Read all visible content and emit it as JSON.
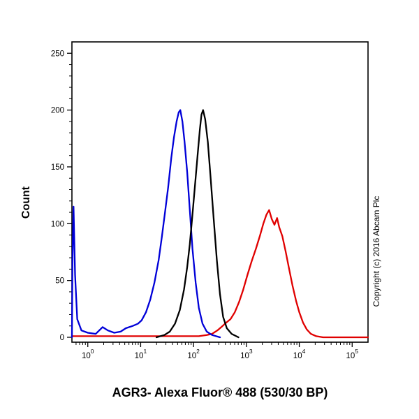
{
  "copyright": "Copyright (c) 2016 Abcam Plc",
  "chart_data": {
    "type": "line",
    "title": "",
    "xlabel": "AGR3- Alexa Fluor® 488 (530/30 BP)",
    "ylabel": "Count",
    "x_scale": "log",
    "x_range_log": [
      -0.3,
      5.3
    ],
    "ylim": [
      0,
      260
    ],
    "y_ticks": [
      0,
      50,
      100,
      150,
      200,
      250
    ],
    "x_major_ticks_exponents": [
      0,
      1,
      2,
      3,
      4,
      5
    ],
    "x_tick_labels": [
      "10^0",
      "10^1",
      "10^2",
      "10^3",
      "10^4",
      "10^5"
    ],
    "grid": false,
    "legend": null,
    "series": [
      {
        "name": "red",
        "color": "#e00000",
        "points": [
          [
            -0.3,
            1
          ],
          [
            0.5,
            1
          ],
          [
            1.5,
            1
          ],
          [
            2.1,
            1
          ],
          [
            2.25,
            2
          ],
          [
            2.35,
            3
          ],
          [
            2.45,
            6
          ],
          [
            2.55,
            10
          ],
          [
            2.62,
            13
          ],
          [
            2.7,
            16
          ],
          [
            2.78,
            22
          ],
          [
            2.86,
            31
          ],
          [
            2.94,
            42
          ],
          [
            3.02,
            55
          ],
          [
            3.1,
            67
          ],
          [
            3.18,
            78
          ],
          [
            3.26,
            90
          ],
          [
            3.32,
            100
          ],
          [
            3.38,
            108
          ],
          [
            3.43,
            112
          ],
          [
            3.48,
            104
          ],
          [
            3.53,
            99
          ],
          [
            3.58,
            105
          ],
          [
            3.62,
            97
          ],
          [
            3.68,
            89
          ],
          [
            3.74,
            76
          ],
          [
            3.8,
            62
          ],
          [
            3.87,
            46
          ],
          [
            3.94,
            32
          ],
          [
            4.0,
            22
          ],
          [
            4.07,
            13
          ],
          [
            4.14,
            7
          ],
          [
            4.22,
            3
          ],
          [
            4.32,
            1
          ],
          [
            4.45,
            0
          ],
          [
            5.3,
            0
          ]
        ]
      },
      {
        "name": "blue",
        "color": "#0000d8",
        "points": [
          [
            -0.3,
            0
          ],
          [
            -0.29,
            70
          ],
          [
            -0.27,
            115
          ],
          [
            -0.24,
            55
          ],
          [
            -0.2,
            16
          ],
          [
            -0.12,
            6
          ],
          [
            0.0,
            4
          ],
          [
            0.15,
            3
          ],
          [
            0.28,
            9
          ],
          [
            0.38,
            6
          ],
          [
            0.5,
            4
          ],
          [
            0.62,
            5
          ],
          [
            0.72,
            8
          ],
          [
            0.85,
            10
          ],
          [
            0.95,
            12
          ],
          [
            1.02,
            15
          ],
          [
            1.1,
            22
          ],
          [
            1.18,
            33
          ],
          [
            1.26,
            48
          ],
          [
            1.34,
            68
          ],
          [
            1.4,
            88
          ],
          [
            1.46,
            110
          ],
          [
            1.52,
            132
          ],
          [
            1.58,
            158
          ],
          [
            1.63,
            176
          ],
          [
            1.68,
            190
          ],
          [
            1.72,
            198
          ],
          [
            1.75,
            200
          ],
          [
            1.79,
            190
          ],
          [
            1.83,
            172
          ],
          [
            1.88,
            145
          ],
          [
            1.93,
            112
          ],
          [
            1.98,
            78
          ],
          [
            2.04,
            48
          ],
          [
            2.1,
            26
          ],
          [
            2.17,
            12
          ],
          [
            2.25,
            5
          ],
          [
            2.35,
            2
          ],
          [
            2.5,
            0
          ]
        ]
      },
      {
        "name": "black",
        "color": "#000000",
        "points": [
          [
            1.3,
            0
          ],
          [
            1.45,
            2
          ],
          [
            1.55,
            5
          ],
          [
            1.65,
            12
          ],
          [
            1.74,
            24
          ],
          [
            1.82,
            42
          ],
          [
            1.88,
            62
          ],
          [
            1.93,
            82
          ],
          [
            1.98,
            108
          ],
          [
            2.03,
            135
          ],
          [
            2.08,
            162
          ],
          [
            2.12,
            183
          ],
          [
            2.15,
            196
          ],
          [
            2.18,
            200
          ],
          [
            2.22,
            192
          ],
          [
            2.27,
            172
          ],
          [
            2.32,
            142
          ],
          [
            2.38,
            105
          ],
          [
            2.44,
            68
          ],
          [
            2.5,
            38
          ],
          [
            2.56,
            18
          ],
          [
            2.63,
            8
          ],
          [
            2.72,
            3
          ],
          [
            2.85,
            0
          ]
        ]
      }
    ]
  }
}
